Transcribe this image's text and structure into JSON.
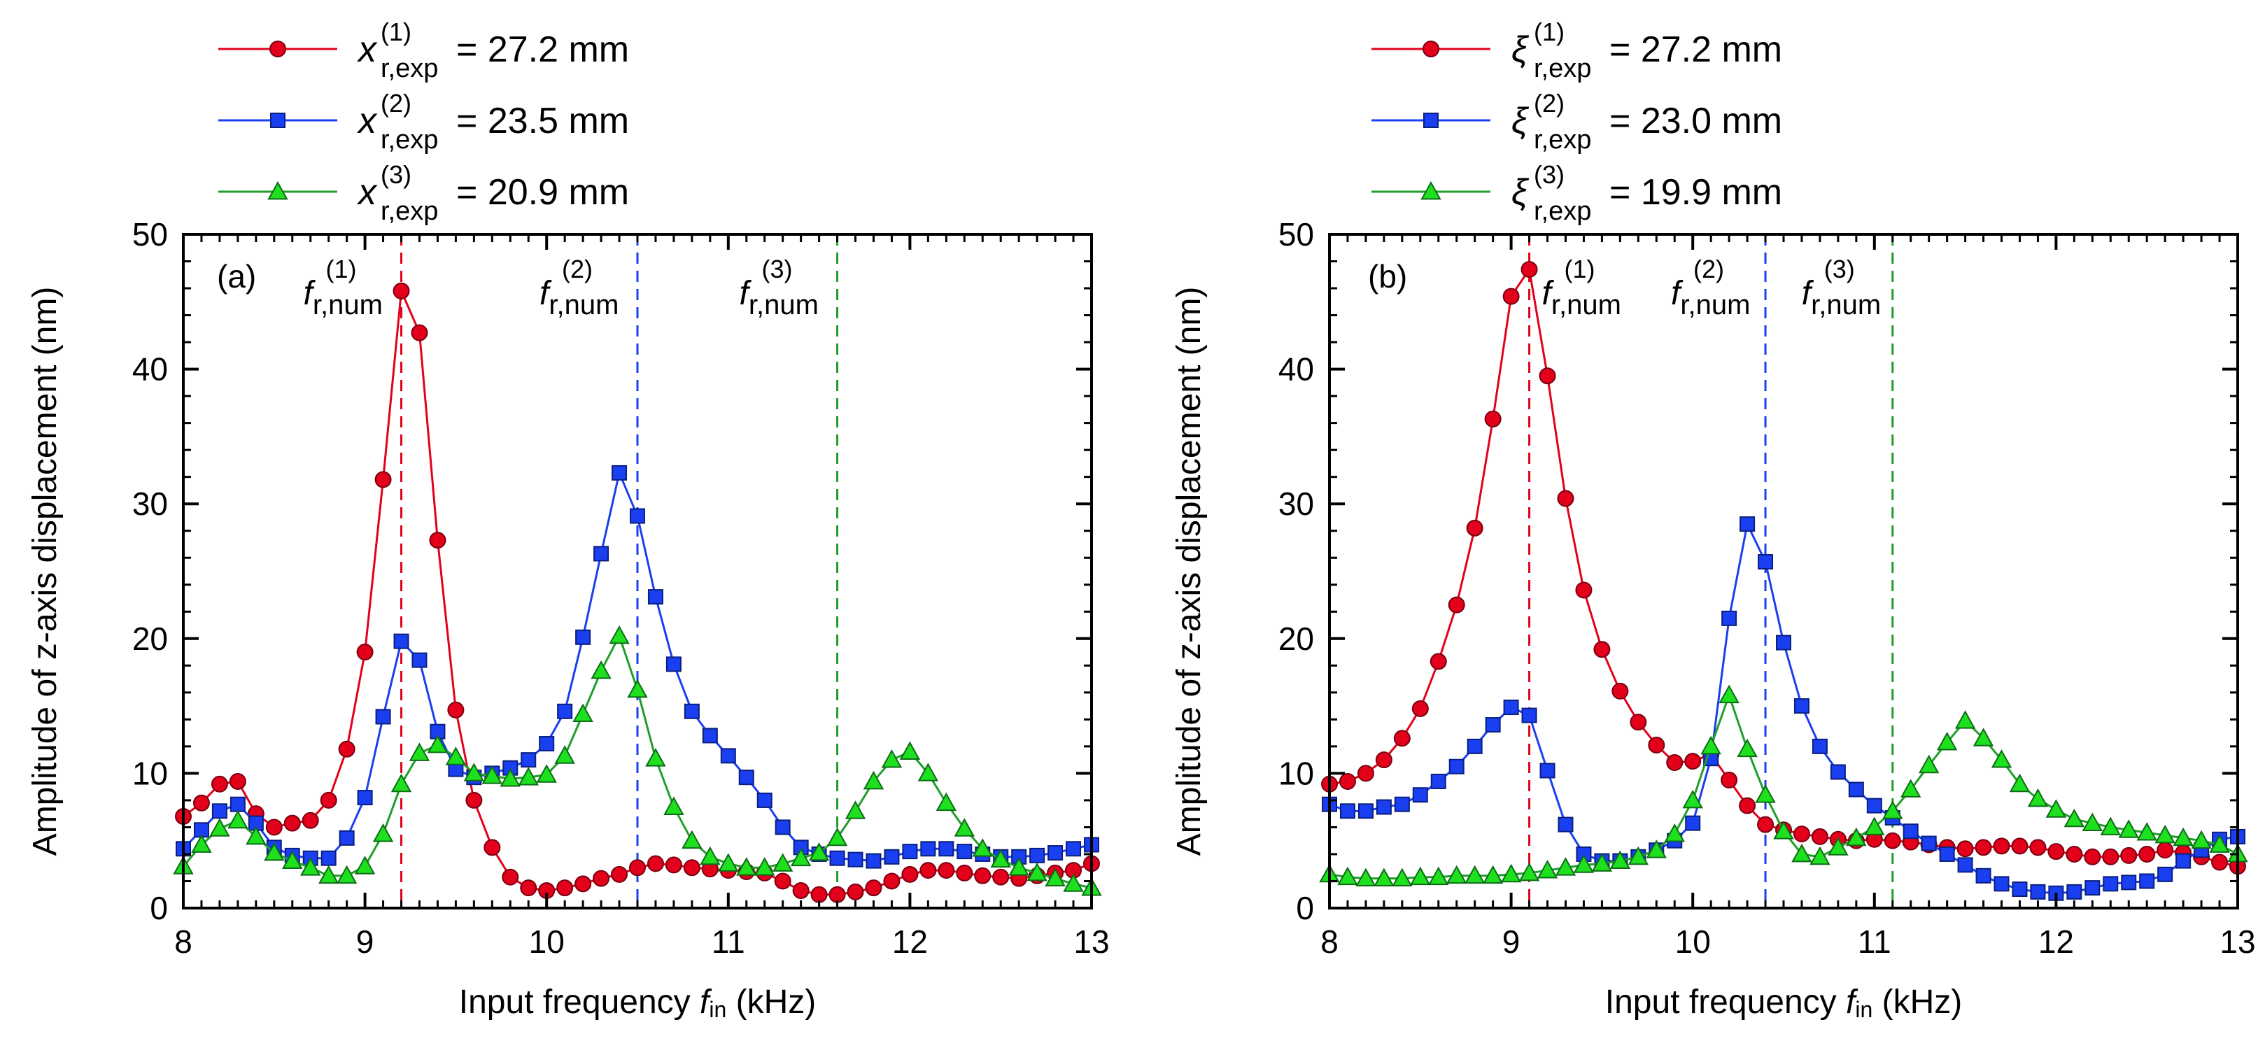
{
  "chart_data": [
    {
      "type": "line",
      "panel_label": "(a)",
      "xlabel": "Input frequency",
      "xlabel_symbol": "f",
      "xlabel_symbol_sub": "in",
      "xlabel_unit": "(kHz)",
      "ylabel": "Amplitude of z-axis displacement (nm)",
      "xlim": [
        8,
        13
      ],
      "ylim": [
        0,
        50
      ],
      "xticks": [
        "8",
        "9",
        "10",
        "11",
        "12",
        "13"
      ],
      "yticks": [
        "0",
        "10",
        "20",
        "30",
        "40",
        "50"
      ],
      "legend_position": "top",
      "series": [
        {
          "name": "series-1",
          "legend_symbol": "x",
          "legend_sub": "r,exp",
          "legend_sup": "(1)",
          "legend_value": "= 27.2 mm",
          "color": "#e3001b",
          "marker": "circle",
          "x": [
            8.0,
            8.1,
            8.2,
            8.3,
            8.4,
            8.5,
            8.6,
            8.7,
            8.8,
            8.9,
            9.0,
            9.1,
            9.2,
            9.3,
            9.4,
            9.5,
            9.6,
            9.7,
            9.8,
            9.9,
            10.0,
            10.1,
            10.2,
            10.3,
            10.4,
            10.5,
            10.6,
            10.7,
            10.8,
            10.9,
            11.0,
            11.1,
            11.2,
            11.3,
            11.4,
            11.5,
            11.6,
            11.7,
            11.8,
            11.9,
            12.0,
            12.1,
            12.2,
            12.3,
            12.4,
            12.5,
            12.6,
            12.7,
            12.8,
            12.9,
            13.0
          ],
          "y": [
            6.8,
            7.8,
            9.2,
            9.4,
            7.0,
            6.0,
            6.3,
            6.5,
            8.0,
            11.8,
            19.0,
            31.8,
            45.8,
            42.7,
            27.3,
            14.7,
            8.0,
            4.5,
            2.3,
            1.5,
            1.3,
            1.5,
            1.8,
            2.2,
            2.5,
            3.0,
            3.3,
            3.2,
            3.0,
            2.9,
            2.8,
            2.7,
            2.6,
            2.0,
            1.3,
            1.0,
            1.0,
            1.2,
            1.5,
            2.0,
            2.5,
            2.8,
            2.8,
            2.6,
            2.4,
            2.3,
            2.2,
            2.4,
            2.6,
            2.8,
            3.3
          ]
        },
        {
          "name": "series-2",
          "legend_symbol": "x",
          "legend_sub": "r,exp",
          "legend_sup": "(2)",
          "legend_value": "= 23.5 mm",
          "color": "#1a3ff0",
          "marker": "square",
          "x": [
            8.0,
            8.1,
            8.2,
            8.3,
            8.4,
            8.5,
            8.6,
            8.7,
            8.8,
            8.9,
            9.0,
            9.1,
            9.2,
            9.3,
            9.4,
            9.5,
            9.6,
            9.7,
            9.8,
            9.9,
            10.0,
            10.1,
            10.2,
            10.3,
            10.4,
            10.5,
            10.6,
            10.7,
            10.8,
            10.9,
            11.0,
            11.1,
            11.2,
            11.3,
            11.4,
            11.5,
            11.6,
            11.7,
            11.8,
            11.9,
            12.0,
            12.1,
            12.2,
            12.3,
            12.4,
            12.5,
            12.6,
            12.7,
            12.8,
            12.9,
            13.0
          ],
          "y": [
            4.4,
            5.8,
            7.2,
            7.7,
            6.3,
            4.5,
            3.9,
            3.7,
            3.7,
            5.2,
            8.2,
            14.2,
            19.8,
            18.4,
            13.1,
            10.3,
            9.7,
            10.0,
            10.4,
            11.0,
            12.2,
            14.6,
            20.1,
            26.3,
            32.3,
            29.1,
            23.1,
            18.1,
            14.6,
            12.8,
            11.3,
            9.7,
            8.0,
            6.0,
            4.5,
            4.0,
            3.7,
            3.6,
            3.5,
            3.8,
            4.2,
            4.4,
            4.4,
            4.2,
            4.0,
            3.8,
            3.8,
            3.9,
            4.1,
            4.4,
            4.7
          ]
        },
        {
          "name": "series-3",
          "legend_symbol": "x",
          "legend_sub": "r,exp",
          "legend_sup": "(3)",
          "legend_value": "= 20.9 mm",
          "color": "#1f9e2a",
          "fill": "#1ee01e",
          "marker": "triangle",
          "x": [
            8.0,
            8.1,
            8.2,
            8.3,
            8.4,
            8.5,
            8.6,
            8.7,
            8.8,
            8.9,
            9.0,
            9.1,
            9.2,
            9.3,
            9.4,
            9.5,
            9.6,
            9.7,
            9.8,
            9.9,
            10.0,
            10.1,
            10.2,
            10.3,
            10.4,
            10.5,
            10.6,
            10.7,
            10.8,
            10.9,
            11.0,
            11.1,
            11.2,
            11.3,
            11.4,
            11.5,
            11.6,
            11.7,
            11.8,
            11.9,
            12.0,
            12.1,
            12.2,
            12.3,
            12.4,
            12.5,
            12.6,
            12.7,
            12.8,
            12.9,
            13.0
          ],
          "y": [
            3.1,
            4.7,
            5.9,
            6.5,
            5.3,
            4.1,
            3.5,
            3.0,
            2.4,
            2.4,
            3.1,
            5.5,
            9.2,
            11.5,
            12.1,
            11.2,
            10.0,
            9.8,
            9.6,
            9.7,
            9.9,
            11.3,
            14.4,
            17.6,
            20.2,
            16.2,
            11.1,
            7.5,
            5.0,
            3.8,
            3.3,
            3.0,
            3.0,
            3.3,
            3.7,
            4.1,
            5.2,
            7.2,
            9.4,
            11.0,
            11.6,
            10.0,
            7.8,
            5.9,
            4.4,
            3.6,
            3.0,
            2.6,
            2.2,
            1.8,
            1.5
          ]
        }
      ],
      "vlines": [
        {
          "x": 9.2,
          "color": "#e3001b",
          "label_symbol": "f",
          "label_sub": "r,num",
          "label_sup": "(1)"
        },
        {
          "x": 10.5,
          "color": "#1a3ff0",
          "label_symbol": "f",
          "label_sub": "r,num",
          "label_sup": "(2)"
        },
        {
          "x": 11.6,
          "color": "#1f9e2a",
          "label_symbol": "f",
          "label_sub": "r,num",
          "label_sup": "(3)"
        }
      ]
    },
    {
      "type": "line",
      "panel_label": "(b)",
      "xlabel": "Input frequency",
      "xlabel_symbol": "f",
      "xlabel_symbol_sub": "in",
      "xlabel_unit": "(kHz)",
      "ylabel": "Amplitude of z-axis displacement (nm)",
      "xlim": [
        8,
        13
      ],
      "ylim": [
        0,
        50
      ],
      "xticks": [
        "8",
        "9",
        "10",
        "11",
        "12",
        "13"
      ],
      "yticks": [
        "0",
        "10",
        "20",
        "30",
        "40",
        "50"
      ],
      "legend_position": "top",
      "series": [
        {
          "name": "series-1",
          "legend_symbol": "ξ",
          "legend_sub": "r,exp",
          "legend_sup": "(1)",
          "legend_value": "= 27.2 mm",
          "color": "#e3001b",
          "marker": "circle",
          "x": [
            8.0,
            8.1,
            8.2,
            8.3,
            8.4,
            8.5,
            8.6,
            8.7,
            8.8,
            8.9,
            9.0,
            9.1,
            9.2,
            9.3,
            9.4,
            9.5,
            9.6,
            9.7,
            9.8,
            9.9,
            10.0,
            10.1,
            10.2,
            10.3,
            10.4,
            10.5,
            10.6,
            10.7,
            10.8,
            10.9,
            11.0,
            11.1,
            11.2,
            11.3,
            11.4,
            11.5,
            11.6,
            11.7,
            11.8,
            11.9,
            12.0,
            12.1,
            12.2,
            12.3,
            12.4,
            12.5,
            12.6,
            12.7,
            12.8,
            12.9,
            13.0
          ],
          "y": [
            9.2,
            9.4,
            10.0,
            11.0,
            12.6,
            14.8,
            18.3,
            22.5,
            28.2,
            36.3,
            45.4,
            47.4,
            39.5,
            30.4,
            23.6,
            19.2,
            16.1,
            13.8,
            12.1,
            10.8,
            10.9,
            11.4,
            9.5,
            7.6,
            6.2,
            5.8,
            5.5,
            5.3,
            5.1,
            5.0,
            5.1,
            5.0,
            4.9,
            4.7,
            4.5,
            4.4,
            4.5,
            4.6,
            4.6,
            4.5,
            4.2,
            4.0,
            3.8,
            3.8,
            3.9,
            4.0,
            4.3,
            4.1,
            3.8,
            3.4,
            3.1
          ]
        },
        {
          "name": "series-2",
          "legend_symbol": "ξ",
          "legend_sub": "r,exp",
          "legend_sup": "(2)",
          "legend_value": "= 23.0 mm",
          "color": "#1a3ff0",
          "marker": "square",
          "x": [
            8.0,
            8.1,
            8.2,
            8.3,
            8.4,
            8.5,
            8.6,
            8.7,
            8.8,
            8.9,
            9.0,
            9.1,
            9.2,
            9.3,
            9.4,
            9.5,
            9.6,
            9.7,
            9.8,
            9.9,
            10.0,
            10.1,
            10.2,
            10.3,
            10.4,
            10.5,
            10.6,
            10.7,
            10.8,
            10.9,
            11.0,
            11.1,
            11.2,
            11.3,
            11.4,
            11.5,
            11.6,
            11.7,
            11.8,
            11.9,
            12.0,
            12.1,
            12.2,
            12.3,
            12.4,
            12.5,
            12.6,
            12.7,
            12.8,
            12.9,
            13.0
          ],
          "y": [
            7.7,
            7.2,
            7.2,
            7.5,
            7.7,
            8.4,
            9.4,
            10.5,
            12.0,
            13.6,
            14.9,
            14.3,
            10.2,
            6.2,
            4.0,
            3.5,
            3.5,
            3.8,
            4.3,
            5.0,
            6.3,
            11.1,
            21.5,
            28.5,
            25.7,
            19.7,
            15.0,
            12.0,
            10.1,
            8.8,
            7.6,
            6.7,
            5.7,
            4.8,
            4.0,
            3.2,
            2.4,
            1.8,
            1.4,
            1.2,
            1.1,
            1.2,
            1.5,
            1.8,
            1.9,
            2.0,
            2.5,
            3.5,
            4.3,
            5.1,
            5.3
          ]
        },
        {
          "name": "series-3",
          "legend_symbol": "ξ",
          "legend_sub": "r,exp",
          "legend_sup": "(3)",
          "legend_value": "= 19.9 mm",
          "color": "#1f9e2a",
          "fill": "#1ee01e",
          "marker": "triangle",
          "x": [
            8.0,
            8.1,
            8.2,
            8.3,
            8.4,
            8.5,
            8.6,
            8.7,
            8.8,
            8.9,
            9.0,
            9.1,
            9.2,
            9.3,
            9.4,
            9.5,
            9.6,
            9.7,
            9.8,
            9.9,
            10.0,
            10.1,
            10.2,
            10.3,
            10.4,
            10.5,
            10.6,
            10.7,
            10.8,
            10.9,
            11.0,
            11.1,
            11.2,
            11.3,
            11.4,
            11.5,
            11.6,
            11.7,
            11.8,
            11.9,
            12.0,
            12.1,
            12.2,
            12.3,
            12.4,
            12.5,
            12.6,
            12.7,
            12.8,
            12.9,
            13.0
          ],
          "y": [
            2.5,
            2.3,
            2.2,
            2.2,
            2.2,
            2.3,
            2.3,
            2.4,
            2.4,
            2.4,
            2.5,
            2.6,
            2.8,
            3.0,
            3.2,
            3.3,
            3.5,
            3.8,
            4.3,
            5.5,
            8.0,
            12.0,
            15.8,
            11.8,
            8.4,
            5.7,
            4.0,
            3.8,
            4.5,
            5.2,
            6.0,
            7.2,
            8.8,
            10.6,
            12.3,
            13.9,
            12.6,
            11.0,
            9.2,
            8.1,
            7.3,
            6.6,
            6.3,
            6.0,
            5.8,
            5.6,
            5.4,
            5.2,
            5.0,
            4.7,
            4.0
          ]
        }
      ],
      "vlines": [
        {
          "x": 9.1,
          "color": "#e3001b",
          "label_symbol": "f",
          "label_sub": "r,num",
          "label_sup": "(1)"
        },
        {
          "x": 10.4,
          "color": "#1a3ff0",
          "label_symbol": "f",
          "label_sub": "r,num",
          "label_sup": "(2)"
        },
        {
          "x": 11.1,
          "color": "#1f9e2a",
          "label_symbol": "f",
          "label_sub": "r,num",
          "label_sup": "(3)"
        }
      ]
    }
  ]
}
